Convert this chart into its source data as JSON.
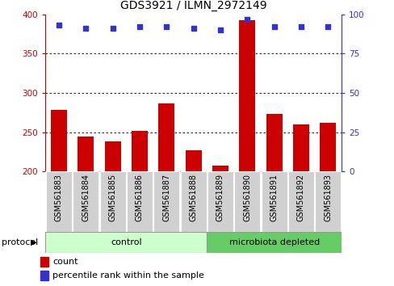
{
  "title": "GDS3921 / ILMN_2972149",
  "samples": [
    "GSM561883",
    "GSM561884",
    "GSM561885",
    "GSM561886",
    "GSM561887",
    "GSM561888",
    "GSM561889",
    "GSM561890",
    "GSM561891",
    "GSM561892",
    "GSM561893"
  ],
  "bar_values": [
    278,
    245,
    238,
    252,
    287,
    227,
    208,
    392,
    273,
    260,
    262
  ],
  "percentile_values": [
    93,
    91,
    91,
    92,
    92,
    91,
    90,
    97,
    92,
    92,
    92
  ],
  "bar_color": "#cc0000",
  "dot_color": "#3333cc",
  "bar_bottom": 200,
  "ylim_left": [
    200,
    400
  ],
  "ylim_right": [
    0,
    100
  ],
  "yticks_left": [
    200,
    250,
    300,
    350,
    400
  ],
  "yticks_right": [
    0,
    25,
    50,
    75,
    100
  ],
  "grid_values": [
    250,
    300,
    350
  ],
  "n_control": 6,
  "n_microbiota": 5,
  "control_label": "control",
  "microbiota_label": "microbiota depleted",
  "protocol_label": "protocol",
  "legend_count": "count",
  "legend_percentile": "percentile rank within the sample",
  "control_color": "#ccffcc",
  "microbiota_color": "#66cc66",
  "sample_box_color": "#d0d0d0",
  "title_fontsize": 10,
  "tick_fontsize": 7.5,
  "label_fontsize": 7,
  "protocol_fontsize": 8,
  "legend_fontsize": 8
}
